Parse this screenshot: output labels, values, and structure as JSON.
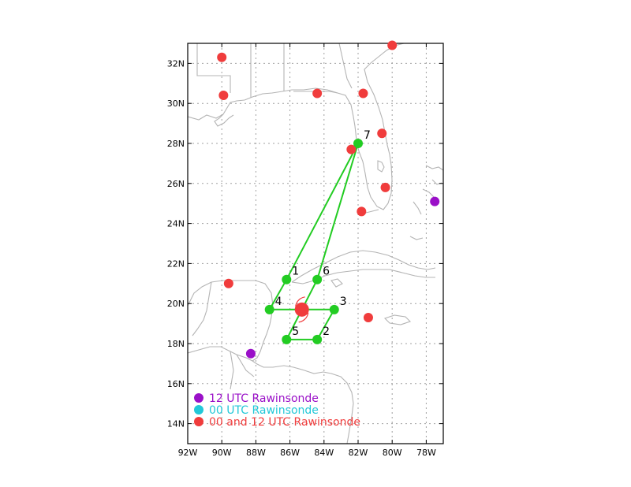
{
  "map": {
    "lon_range": [
      -92,
      -77
    ],
    "lat_range": [
      13,
      33
    ],
    "lon_ticks": [
      {
        "value": -92,
        "label": "92W"
      },
      {
        "value": -90,
        "label": "90W"
      },
      {
        "value": -88,
        "label": "88W"
      },
      {
        "value": -86,
        "label": "86W"
      },
      {
        "value": -84,
        "label": "84W"
      },
      {
        "value": -82,
        "label": "82W"
      },
      {
        "value": -80,
        "label": "80W"
      },
      {
        "value": -78,
        "label": "78W"
      }
    ],
    "lat_ticks": [
      {
        "value": 14,
        "label": "14N"
      },
      {
        "value": 16,
        "label": "16N"
      },
      {
        "value": 18,
        "label": "18N"
      },
      {
        "value": 20,
        "label": "20N"
      },
      {
        "value": 22,
        "label": "22N"
      },
      {
        "value": 24,
        "label": "24N"
      },
      {
        "value": 26,
        "label": "26N"
      },
      {
        "value": 28,
        "label": "28N"
      },
      {
        "value": 30,
        "label": "30N"
      },
      {
        "value": 32,
        "label": "32N"
      }
    ],
    "gridlines": true,
    "colors": {
      "coastline": "#b4b4b4",
      "grid": "#a0a0a0",
      "flight_track": "#22cc22",
      "rawinsonde_12": "#9a10c8",
      "rawinsonde_00": "#22c8d8",
      "rawinsonde_both": "#f03c3c",
      "storm_symbol": "#f03c3c"
    }
  },
  "rawinsondes_00_12": [
    {
      "lon": -90.0,
      "lat": 32.3
    },
    {
      "lon": -80.0,
      "lat": 32.9
    },
    {
      "lon": -89.9,
      "lat": 30.4
    },
    {
      "lon": -84.4,
      "lat": 30.5
    },
    {
      "lon": -81.7,
      "lat": 30.5
    },
    {
      "lon": -80.6,
      "lat": 28.5
    },
    {
      "lon": -82.4,
      "lat": 27.7
    },
    {
      "lon": -80.4,
      "lat": 25.8
    },
    {
      "lon": -81.8,
      "lat": 24.6
    },
    {
      "lon": -89.6,
      "lat": 21.0
    },
    {
      "lon": -81.4,
      "lat": 19.3
    }
  ],
  "rawinsondes_12": [
    {
      "lon": -77.5,
      "lat": 25.1
    },
    {
      "lon": -88.3,
      "lat": 17.5
    }
  ],
  "storm_center": {
    "lon": -85.3,
    "lat": 19.7
  },
  "flight_waypoints": [
    {
      "id": "1",
      "label": "1",
      "lon": -86.2,
      "lat": 21.2,
      "label_pos": "ne"
    },
    {
      "id": "6",
      "label": "6",
      "lon": -84.4,
      "lat": 21.2,
      "label_pos": "ne"
    },
    {
      "id": "3",
      "label": "3",
      "lon": -83.4,
      "lat": 19.7,
      "label_pos": "ne"
    },
    {
      "id": "2",
      "label": "2",
      "lon": -84.4,
      "lat": 18.2,
      "label_pos": "ne"
    },
    {
      "id": "5",
      "label": "5",
      "lon": -86.2,
      "lat": 18.2,
      "label_pos": "ne"
    },
    {
      "id": "4",
      "label": "4",
      "lon": -87.2,
      "lat": 19.7,
      "label_pos": "ne"
    },
    {
      "id": "7",
      "label": "7",
      "lon": -82.0,
      "lat": 28.0,
      "label_pos": "ne"
    }
  ],
  "flight_track_order": [
    "7",
    "1",
    "4",
    "3",
    "2",
    "5",
    "6",
    "7"
  ],
  "legend": [
    {
      "label": "12 UTC Rawinsonde",
      "color": "#9a10c8"
    },
    {
      "label": "00 UTC Rawinsonde",
      "color": "#22c8d8"
    },
    {
      "label": "00 and 12 UTC Rawinsonde",
      "color": "#f03c3c"
    }
  ]
}
